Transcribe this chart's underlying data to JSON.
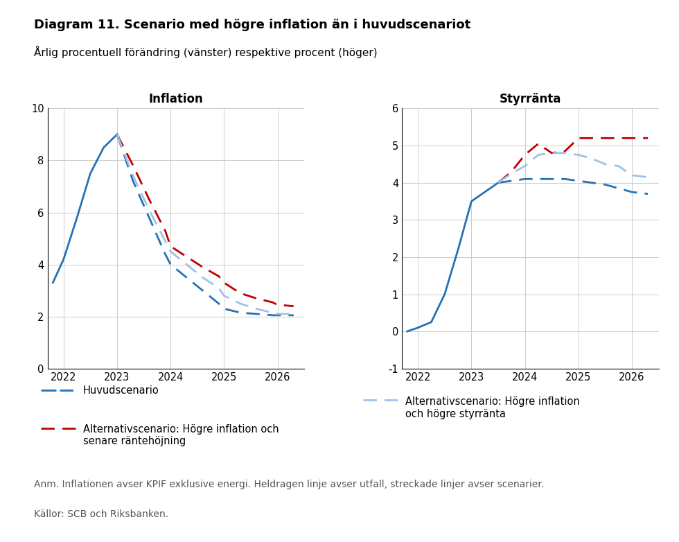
{
  "title": "Diagram 11. Scenario med högre inflation än i huvudscenariot",
  "subtitle": "Årlig procentuell förändring (vänster) respektive procent (höger)",
  "footnote1": "Anm. Inflationen avser KPIF exklusive energi. Heldragen linje avser utfall, streckade linjer avser scenarier.",
  "footnote2": "Källor: SCB och Riksbanken.",
  "left_title": "Inflation",
  "right_title": "Styrränta",
  "inf_x_solid": [
    2021.8,
    2022.0,
    2022.25,
    2022.5,
    2022.75,
    2023.0
  ],
  "inf_y_solid": [
    3.3,
    4.2,
    5.8,
    7.5,
    8.5,
    9.0
  ],
  "inf_x_main_dash": [
    2023.0,
    2023.3,
    2023.6,
    2023.9,
    2024.0,
    2024.3,
    2024.6,
    2024.9,
    2025.0,
    2025.3,
    2025.6,
    2025.9,
    2026.0,
    2026.3
  ],
  "inf_y_main_dash": [
    9.0,
    7.2,
    5.8,
    4.4,
    4.0,
    3.5,
    3.0,
    2.5,
    2.3,
    2.15,
    2.1,
    2.05,
    2.05,
    2.05
  ],
  "inf_x_alt_dash": [
    2023.0,
    2023.3,
    2023.6,
    2023.9,
    2024.0,
    2024.3,
    2024.6,
    2024.9,
    2025.0,
    2025.3,
    2025.6,
    2025.9,
    2026.0,
    2026.3
  ],
  "inf_y_alt_dash": [
    9.0,
    7.8,
    6.5,
    5.3,
    4.7,
    4.3,
    3.9,
    3.55,
    3.3,
    2.9,
    2.7,
    2.55,
    2.45,
    2.4
  ],
  "inf_x_light_dash": [
    2023.0,
    2023.3,
    2023.6,
    2023.9,
    2024.0,
    2024.3,
    2024.6,
    2024.9,
    2025.0,
    2025.3,
    2025.6,
    2025.9,
    2026.0,
    2026.3
  ],
  "inf_y_light_dash": [
    9.0,
    7.4,
    6.1,
    4.9,
    4.5,
    4.0,
    3.5,
    3.1,
    2.8,
    2.5,
    2.3,
    2.15,
    2.1,
    2.1
  ],
  "sty_x_solid": [
    2021.8,
    2022.0,
    2022.25,
    2022.5,
    2022.75,
    2023.0,
    2023.25,
    2023.5
  ],
  "sty_y_solid": [
    0.0,
    0.1,
    0.25,
    1.0,
    2.2,
    3.5,
    3.75,
    4.0
  ],
  "sty_x_main_dash": [
    2023.5,
    2023.75,
    2024.0,
    2024.25,
    2024.5,
    2024.75,
    2025.0,
    2025.25,
    2025.5,
    2025.75,
    2026.0,
    2026.3
  ],
  "sty_y_main_dash": [
    4.0,
    4.05,
    4.1,
    4.1,
    4.1,
    4.1,
    4.05,
    4.0,
    3.95,
    3.85,
    3.75,
    3.7
  ],
  "sty_x_alt_red": [
    2023.5,
    2023.75,
    2024.0,
    2024.25,
    2024.5,
    2024.75,
    2025.0,
    2025.25,
    2025.5,
    2025.75,
    2026.0,
    2026.3
  ],
  "sty_y_alt_red": [
    4.0,
    4.3,
    4.75,
    5.05,
    4.8,
    4.85,
    5.2,
    5.2,
    5.2,
    5.2,
    5.2,
    5.2
  ],
  "sty_x_light_dash": [
    2023.5,
    2023.75,
    2024.0,
    2024.25,
    2024.5,
    2024.75,
    2025.0,
    2025.25,
    2025.5,
    2025.75,
    2026.0,
    2026.3
  ],
  "sty_y_light_dash": [
    4.0,
    4.25,
    4.45,
    4.75,
    4.8,
    4.8,
    4.75,
    4.65,
    4.5,
    4.45,
    4.2,
    4.15
  ],
  "color_dark_blue": "#2472B5",
  "color_light_blue": "#9DC3E6",
  "color_red": "#C00000",
  "inf_xlim": [
    2021.7,
    2026.5
  ],
  "inf_ylim": [
    0,
    10
  ],
  "inf_yticks": [
    0,
    2,
    4,
    6,
    8,
    10
  ],
  "inf_xticks": [
    2022,
    2023,
    2024,
    2025,
    2026
  ],
  "sty_xlim": [
    2021.7,
    2026.5
  ],
  "sty_ylim": [
    -1,
    6
  ],
  "sty_yticks": [
    -1,
    0,
    1,
    2,
    3,
    4,
    5,
    6
  ],
  "sty_xticks": [
    2022,
    2023,
    2024,
    2025,
    2026
  ],
  "legend1_label": "Huvudscenario",
  "legend2_label": "Alternativscenario: Högre inflation och\nsenare räntehöjning",
  "legend3_label": "Alternativscenario: Högre inflation\noch högre styrränta"
}
